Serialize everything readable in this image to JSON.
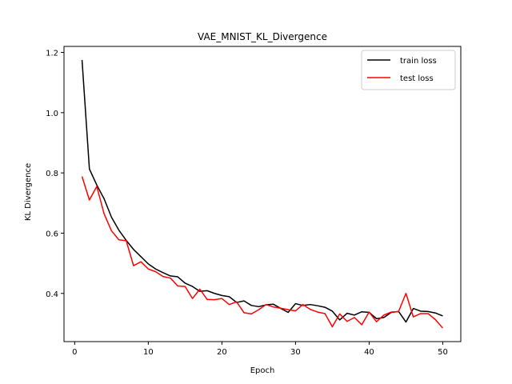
{
  "chart_data": {
    "type": "line",
    "title": "VAE_MNIST_KL_Divergence",
    "xlabel": "Epoch",
    "ylabel": "KL Divergence",
    "xlim": [
      -1.45,
      52.45
    ],
    "ylim": [
      0.24,
      1.22
    ],
    "xticks": [
      0,
      10,
      20,
      30,
      40,
      50
    ],
    "yticks": [
      0.4,
      0.6,
      0.8,
      1.0,
      1.2
    ],
    "ytick_labels": [
      "0.4",
      "0.6",
      "0.8",
      "1.0",
      "1.2"
    ],
    "grid": false,
    "legend_position": "top-right",
    "x": [
      1,
      2,
      3,
      4,
      5,
      6,
      7,
      8,
      9,
      10,
      11,
      12,
      13,
      14,
      15,
      16,
      17,
      18,
      19,
      20,
      21,
      22,
      23,
      24,
      25,
      26,
      27,
      28,
      29,
      30,
      31,
      32,
      33,
      34,
      35,
      36,
      37,
      38,
      39,
      40,
      41,
      42,
      43,
      44,
      45,
      46,
      47,
      48,
      49,
      50
    ],
    "series": [
      {
        "name": "train loss",
        "color": "#000000",
        "values": [
          1.175,
          0.813,
          0.76,
          0.714,
          0.653,
          0.61,
          0.576,
          0.546,
          0.522,
          0.498,
          0.481,
          0.469,
          0.458,
          0.455,
          0.434,
          0.423,
          0.407,
          0.409,
          0.4,
          0.393,
          0.389,
          0.37,
          0.375,
          0.36,
          0.356,
          0.362,
          0.364,
          0.35,
          0.337,
          0.366,
          0.36,
          0.363,
          0.359,
          0.354,
          0.341,
          0.312,
          0.334,
          0.328,
          0.339,
          0.337,
          0.316,
          0.32,
          0.337,
          0.34,
          0.305,
          0.35,
          0.341,
          0.34,
          0.335,
          0.325
        ]
      },
      {
        "name": "test loss",
        "color": "#ff0000",
        "values": [
          0.788,
          0.71,
          0.755,
          0.664,
          0.608,
          0.578,
          0.575,
          0.492,
          0.505,
          0.481,
          0.472,
          0.456,
          0.451,
          0.425,
          0.423,
          0.383,
          0.414,
          0.38,
          0.379,
          0.383,
          0.363,
          0.372,
          0.336,
          0.332,
          0.346,
          0.363,
          0.355,
          0.351,
          0.346,
          0.342,
          0.363,
          0.347,
          0.338,
          0.333,
          0.289,
          0.332,
          0.307,
          0.32,
          0.296,
          0.338,
          0.306,
          0.328,
          0.338,
          0.34,
          0.4,
          0.322,
          0.333,
          0.333,
          0.313,
          0.285
        ]
      }
    ]
  }
}
